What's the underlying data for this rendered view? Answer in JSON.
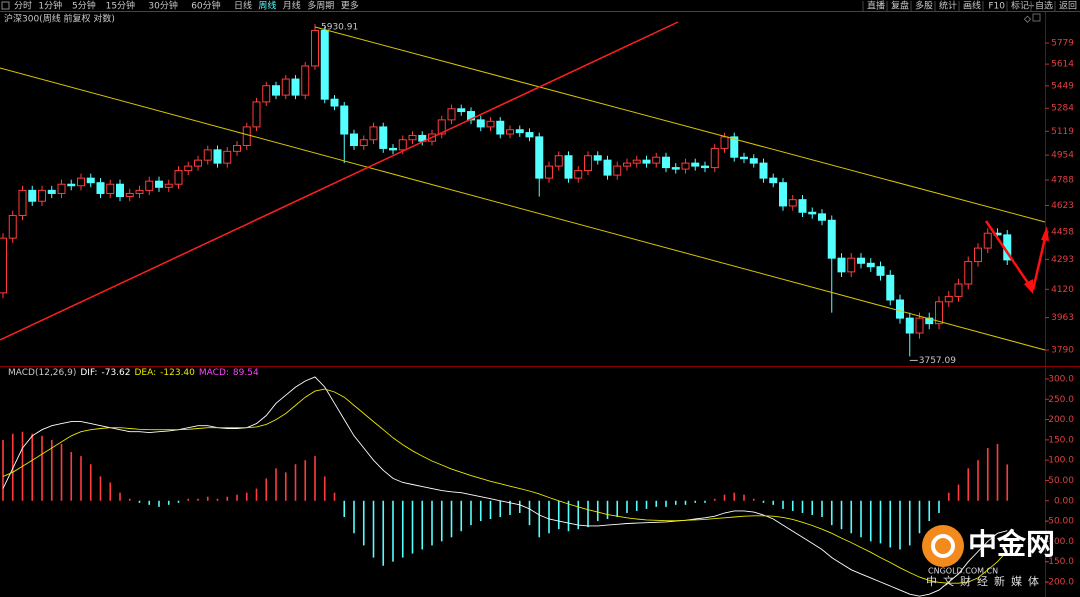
{
  "toolbar": {
    "periods": [
      "分时",
      "1分钟",
      "5分钟",
      "15分钟",
      "30分钟",
      "60分钟",
      "日线",
      "周线",
      "月线",
      "多周期",
      "更多"
    ],
    "active": 7,
    "tools": [
      "直播",
      "复盘",
      "多股",
      "统计",
      "画线",
      "F10",
      "标记",
      "+自选",
      "返回"
    ]
  },
  "chart_data": [
    {
      "type": "candlestick",
      "title": "沪深300(周线 前复权 对数)",
      "log_scale": true,
      "ylim": [
        3713,
        5965
      ],
      "yticks": [
        5779,
        5614,
        5449,
        5284,
        5119,
        4954,
        4788,
        4623,
        4458,
        4293,
        4120,
        3963,
        3790
      ],
      "up_color": "#ff3c3c",
      "down_color": "#54ffff",
      "open": [
        4100,
        4420,
        4560,
        4720,
        4650,
        4720,
        4700,
        4760,
        4750,
        4800,
        4770,
        4700,
        4760,
        4680,
        4700,
        4720,
        4780,
        4740,
        4760,
        4850,
        4880,
        4920,
        4990,
        4900,
        4980,
        5020,
        5150,
        5330,
        5450,
        5380,
        5500,
        5380,
        5600,
        5880,
        5350,
        5300,
        5100,
        5020,
        5060,
        5150,
        5000,
        4990,
        5060,
        5090,
        5050,
        5100,
        5200,
        5280,
        5260,
        5200,
        5150,
        5190,
        5100,
        5130,
        5110,
        5080,
        4800,
        4880,
        4950,
        4800,
        4850,
        4950,
        4920,
        4820,
        4880,
        4900,
        4920,
        4900,
        4940,
        4870,
        4860,
        4900,
        4880,
        4870,
        5000,
        5080,
        4940,
        4930,
        4900,
        4800,
        4770,
        4620,
        4660,
        4580,
        4570,
        4530,
        4300,
        4220,
        4300,
        4270,
        4250,
        4200,
        4060,
        3960,
        3880,
        3960,
        3930,
        4050,
        4080,
        4150,
        4280,
        4360,
        4450,
        4440
      ],
      "high": [
        4450,
        4590,
        4750,
        4750,
        4750,
        4750,
        4790,
        4790,
        4830,
        4830,
        4800,
        4790,
        4790,
        4730,
        4750,
        4810,
        4810,
        4790,
        4880,
        4910,
        4950,
        5020,
        5020,
        5010,
        5050,
        5180,
        5360,
        5480,
        5480,
        5530,
        5530,
        5630,
        5930.91,
        5910,
        5380,
        5330,
        5130,
        5090,
        5180,
        5180,
        5030,
        5090,
        5120,
        5120,
        5130,
        5230,
        5310,
        5310,
        5290,
        5230,
        5220,
        5220,
        5160,
        5160,
        5140,
        5110,
        4910,
        4980,
        4980,
        4880,
        4980,
        4980,
        4950,
        4910,
        4930,
        4950,
        4950,
        4970,
        4970,
        4900,
        4930,
        4930,
        4910,
        5030,
        5110,
        5110,
        4970,
        4960,
        4930,
        4830,
        4800,
        4690,
        4690,
        4610,
        4600,
        4560,
        4330,
        4330,
        4330,
        4300,
        4280,
        4230,
        4090,
        3990,
        3990,
        3990,
        4080,
        4110,
        4180,
        4310,
        4390,
        4480,
        4480,
        4470
      ],
      "low": [
        4070,
        4390,
        4530,
        4620,
        4620,
        4670,
        4670,
        4720,
        4720,
        4740,
        4670,
        4670,
        4650,
        4650,
        4670,
        4690,
        4710,
        4710,
        4730,
        4820,
        4850,
        4890,
        4870,
        4870,
        4950,
        4990,
        5120,
        5300,
        5350,
        5350,
        5350,
        5350,
        5570,
        5320,
        5270,
        4900,
        4990,
        4990,
        5030,
        4970,
        4960,
        4960,
        5030,
        5020,
        5020,
        5070,
        5170,
        5230,
        5170,
        5120,
        5120,
        5070,
        5070,
        5080,
        5050,
        4680,
        4770,
        4850,
        4770,
        4770,
        4820,
        4890,
        4790,
        4790,
        4850,
        4870,
        4870,
        4870,
        4840,
        4830,
        4830,
        4850,
        4840,
        4840,
        4970,
        4910,
        4900,
        4870,
        4770,
        4740,
        4590,
        4590,
        4550,
        4540,
        4500,
        3990,
        4190,
        4190,
        4240,
        4220,
        4170,
        4030,
        3930,
        3757.09,
        3850,
        3900,
        3900,
        4020,
        4050,
        4120,
        4250,
        4330,
        4410,
        4260
      ],
      "close": [
        4420,
        4560,
        4720,
        4650,
        4720,
        4700,
        4760,
        4750,
        4800,
        4770,
        4700,
        4760,
        4680,
        4700,
        4720,
        4780,
        4740,
        4760,
        4850,
        4880,
        4920,
        4990,
        4900,
        4980,
        5020,
        5150,
        5330,
        5450,
        5380,
        5500,
        5380,
        5600,
        5880,
        5350,
        5300,
        5100,
        5020,
        5060,
        5150,
        5000,
        4990,
        5060,
        5090,
        5050,
        5100,
        5200,
        5280,
        5260,
        5200,
        5150,
        5190,
        5100,
        5130,
        5110,
        5080,
        4800,
        4880,
        4950,
        4800,
        4850,
        4950,
        4920,
        4820,
        4880,
        4900,
        4920,
        4900,
        4940,
        4870,
        4860,
        4900,
        4880,
        4870,
        5000,
        5080,
        4940,
        4930,
        4900,
        4800,
        4770,
        4620,
        4660,
        4580,
        4570,
        4530,
        4300,
        4220,
        4300,
        4270,
        4250,
        4200,
        4060,
        3960,
        3880,
        3960,
        3930,
        4050,
        4080,
        4150,
        4280,
        4360,
        4450,
        4440,
        4290
      ]
    },
    {
      "type": "macd",
      "title": "MACD(12,26,9)",
      "ylim": [
        -237,
        327
      ],
      "yticks": [
        {
          "value": 300,
          "label": "300.0"
        },
        {
          "value": 250,
          "label": "250.0"
        },
        {
          "value": 200,
          "label": "200.0"
        },
        {
          "value": 150,
          "label": "150.0"
        },
        {
          "value": 100,
          "label": "100.0"
        },
        {
          "value": 50,
          "label": "50.00"
        },
        {
          "value": 0,
          "label": "0.00"
        },
        {
          "value": -50,
          "label": "-50.00"
        },
        {
          "value": -100,
          "label": "-100.0"
        },
        {
          "value": -150,
          "label": "-150.0"
        },
        {
          "value": -200,
          "label": "-200.0"
        }
      ],
      "series": [
        {
          "name": "DIF:",
          "color": "#ffffff",
          "kind": "line",
          "last_label": "-73.62",
          "values": [
            30,
            80,
            130,
            160,
            175,
            185,
            190,
            195,
            195,
            190,
            185,
            180,
            175,
            170,
            170,
            168,
            170,
            172,
            175,
            180,
            185,
            185,
            180,
            178,
            178,
            180,
            190,
            210,
            240,
            260,
            280,
            295,
            305,
            280,
            240,
            200,
            160,
            130,
            100,
            75,
            55,
            45,
            40,
            35,
            30,
            25,
            22,
            20,
            15,
            10,
            5,
            0,
            -5,
            -10,
            -20,
            -35,
            -45,
            -50,
            -55,
            -60,
            -62,
            -62,
            -60,
            -58,
            -56,
            -55,
            -54,
            -53,
            -52,
            -50,
            -48,
            -45,
            -42,
            -38,
            -30,
            -25,
            -25,
            -28,
            -35,
            -45,
            -60,
            -75,
            -90,
            -105,
            -120,
            -140,
            -155,
            -170,
            -180,
            -190,
            -200,
            -210,
            -220,
            -230,
            -235,
            -230,
            -220,
            -200,
            -180,
            -150,
            -125,
            -100,
            -80,
            -73.62
          ]
        },
        {
          "name": "DEA:",
          "color": "#e8e800",
          "kind": "line",
          "last_label": "-123.40",
          "values": [
            60,
            70,
            85,
            100,
            115,
            130,
            145,
            160,
            170,
            175,
            178,
            180,
            180,
            178,
            176,
            175,
            175,
            175,
            175,
            176,
            178,
            180,
            180,
            180,
            180,
            180,
            182,
            188,
            200,
            215,
            235,
            255,
            270,
            275,
            268,
            255,
            235,
            215,
            195,
            175,
            155,
            138,
            123,
            110,
            98,
            88,
            78,
            70,
            62,
            55,
            48,
            42,
            36,
            30,
            24,
            17,
            8,
            0,
            -8,
            -15,
            -22,
            -28,
            -34,
            -38,
            -42,
            -45,
            -47,
            -48,
            -49,
            -49,
            -48,
            -47,
            -46,
            -44,
            -42,
            -40,
            -38,
            -37,
            -37,
            -38,
            -41,
            -46,
            -53,
            -61,
            -70,
            -80,
            -92,
            -103,
            -115,
            -127,
            -140,
            -152,
            -165,
            -177,
            -188,
            -196,
            -201,
            -203,
            -203,
            -200,
            -190,
            -170,
            -150,
            -123.4
          ]
        },
        {
          "name": "MACD:",
          "color": "#ff44ff",
          "kind": "bar",
          "up_color": "#ff3c3c",
          "down_color": "#54ffff",
          "last_label": "89.54",
          "values": [
            150,
            165,
            170,
            165,
            160,
            150,
            140,
            120,
            110,
            90,
            60,
            45,
            20,
            5,
            -5,
            -10,
            -15,
            -10,
            -5,
            5,
            5,
            10,
            5,
            10,
            15,
            20,
            30,
            55,
            80,
            70,
            90,
            100,
            110,
            60,
            20,
            -40,
            -80,
            -110,
            -140,
            -160,
            -150,
            -140,
            -130,
            -120,
            -110,
            -100,
            -90,
            -75,
            -60,
            -50,
            -45,
            -40,
            -35,
            -30,
            -60,
            -90,
            -80,
            -70,
            -75,
            -70,
            -65,
            -50,
            -45,
            -40,
            -30,
            -25,
            -20,
            -15,
            -15,
            -10,
            -10,
            -5,
            -5,
            5,
            15,
            20,
            15,
            5,
            -5,
            -10,
            -20,
            -25,
            -30,
            -35,
            -40,
            -60,
            -70,
            -80,
            -90,
            -100,
            -105,
            -115,
            -120,
            -110,
            -80,
            -50,
            -30,
            20,
            40,
            80,
            100,
            130,
            140,
            89.54
          ]
        }
      ]
    }
  ],
  "watermark": {
    "brand": "中金网",
    "site": "CNGOLD.COM.CN",
    "slogan": "中文财经新媒体"
  }
}
